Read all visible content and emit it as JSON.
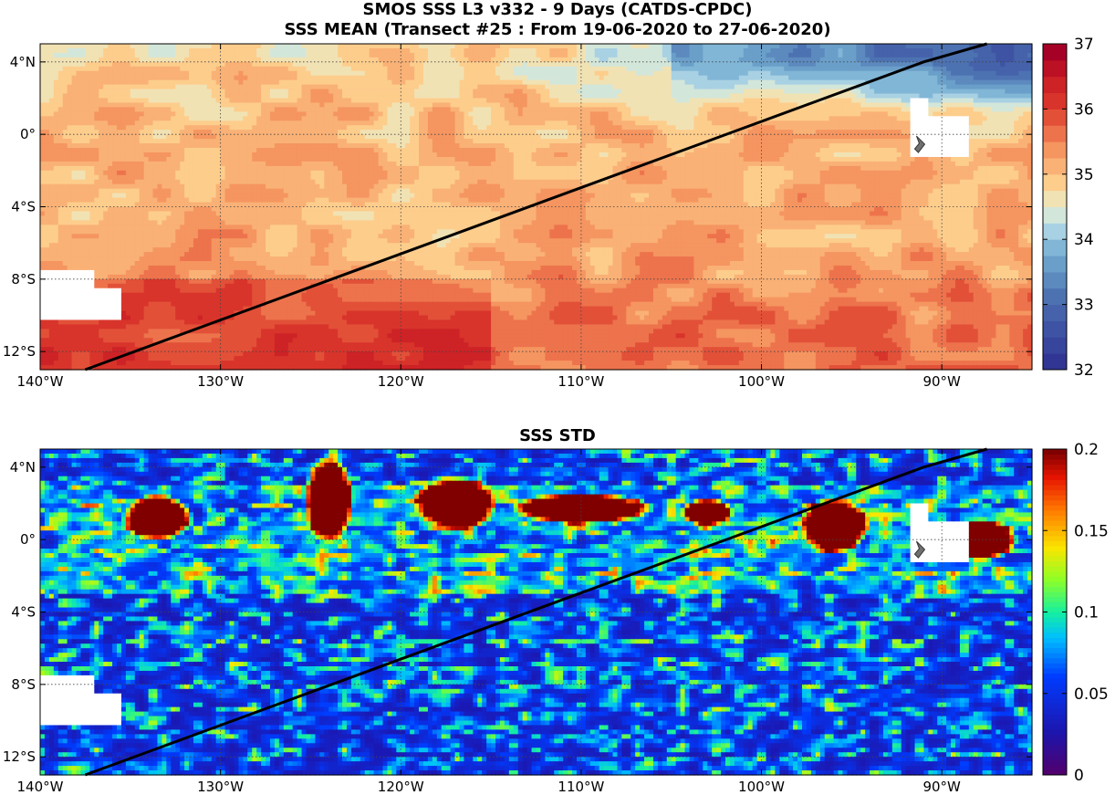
{
  "top_title_line1": "SMOS SSS L3 v332 - 9 Days (CATDS-CPDC)",
  "top_title_line2": "SSS MEAN (Transect #25 : From 19-06-2020 to 27-06-2020)",
  "bottom_title": "SSS STD",
  "colors": {
    "background": "#ffffff",
    "transect_line": "#000000",
    "land_mask": "#ffffff",
    "island_marker": "#707070"
  },
  "chart_data": [
    {
      "type": "heatmap",
      "title": "SSS MEAN (Transect #25 : From 19-06-2020 to 27-06-2020)",
      "xlabel": "",
      "ylabel": "",
      "xlim": [
        -140,
        -85
      ],
      "ylim": [
        -13,
        5
      ],
      "x_ticks": [
        -140,
        -130,
        -120,
        -110,
        -100,
        -90
      ],
      "x_tick_labels": [
        "140°W",
        "130°W",
        "120°W",
        "110°W",
        "100°W",
        "90°W"
      ],
      "y_ticks": [
        4,
        0,
        -4,
        -8,
        -12
      ],
      "y_tick_labels": [
        "4°N",
        "0°",
        "4°S",
        "8°S",
        "12°S"
      ],
      "grid": true,
      "colorbar": {
        "min": 32,
        "max": 37,
        "ticks": [
          32,
          33,
          34,
          35,
          36,
          37
        ],
        "tick_labels": [
          "32",
          "33",
          "34",
          "35",
          "36",
          "37"
        ],
        "levels": 20,
        "colormap": "blue-white-red"
      },
      "transect": {
        "lon": [
          -137.5,
          -91,
          -87.5
        ],
        "lat": [
          -13,
          4.0,
          5.0
        ]
      }
    },
    {
      "type": "heatmap",
      "title": "SSS STD",
      "xlabel": "",
      "ylabel": "",
      "xlim": [
        -140,
        -85
      ],
      "ylim": [
        -13,
        5
      ],
      "x_ticks": [
        -140,
        -130,
        -120,
        -110,
        -100,
        -90
      ],
      "x_tick_labels": [
        "140°W",
        "130°W",
        "120°W",
        "110°W",
        "100°W",
        "90°W"
      ],
      "y_ticks": [
        4,
        0,
        -4,
        -8,
        -12
      ],
      "y_tick_labels": [
        "4°N",
        "0°",
        "4°S",
        "8°S",
        "12°S"
      ],
      "grid": true,
      "colorbar": {
        "min": 0,
        "max": 0.2,
        "ticks": [
          0,
          0.05,
          0.1,
          0.15,
          0.2
        ],
        "tick_labels": [
          "0",
          "0.05",
          "0.1",
          "0.15",
          "0.2"
        ],
        "levels": 64,
        "colormap": "jet"
      },
      "transect": {
        "lon": [
          -137.5,
          -91,
          -87.5
        ],
        "lat": [
          -13,
          4.0,
          5.0
        ]
      }
    }
  ]
}
